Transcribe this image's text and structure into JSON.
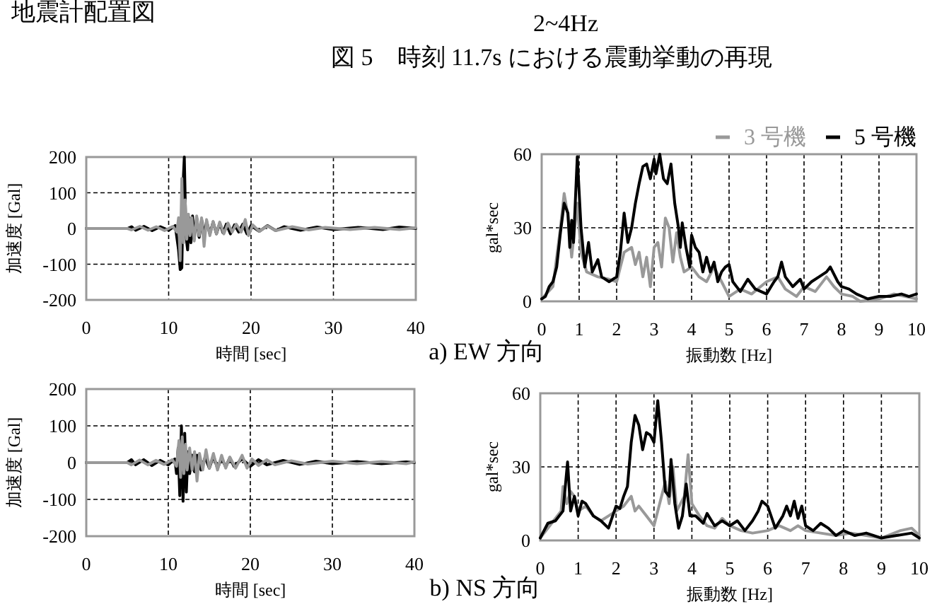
{
  "chart_data": [
    {
      "type": "line",
      "xlabel": "時間 [sec]",
      "ylabel": "加速度 [Gal]",
      "xlim": [
        0,
        40
      ],
      "ylim": [
        -200,
        200
      ],
      "xticks": [
        0,
        10,
        20,
        30,
        40
      ],
      "yticks": [
        -200,
        -100,
        0,
        100,
        200
      ],
      "grid": true,
      "annotations": [
        "地震計配置図",
        "2~4Hz",
        "図 5　時刻 11.7s における震動挙動の再現",
        "a) EW 方向"
      ],
      "series": [
        {
          "color": "#000000",
          "x": [
            0,
            5,
            5.5,
            6,
            7,
            8,
            9,
            10,
            10.8,
            11.2,
            11.4,
            11.6,
            11.8,
            11.9,
            12.1,
            12.3,
            12.5,
            12.7,
            12.9,
            13.1,
            13.4,
            13.7,
            14,
            14.3,
            14.6,
            15,
            15.4,
            15.8,
            16.2,
            16.6,
            17,
            17.5,
            18,
            18.5,
            19,
            19.5,
            20,
            21,
            22,
            23,
            24,
            26,
            28,
            30,
            33,
            36,
            38,
            40
          ],
          "values": [
            0,
            0,
            5,
            -5,
            6,
            -6,
            5,
            -5,
            8,
            -60,
            -115,
            -110,
            150,
            200,
            -20,
            -60,
            30,
            -40,
            35,
            -30,
            30,
            -25,
            25,
            -20,
            20,
            -15,
            18,
            -15,
            15,
            -12,
            12,
            -15,
            10,
            -10,
            12,
            -15,
            8,
            -8,
            8,
            -6,
            5,
            -5,
            4,
            -3,
            3,
            -3,
            4,
            0
          ]
        },
        {
          "color": "#999999",
          "x": [
            0,
            5,
            5.5,
            6.5,
            7.5,
            8.5,
            9.5,
            10.5,
            11,
            11.2,
            11.4,
            11.6,
            11.8,
            12,
            12.2,
            12.4,
            12.6,
            12.8,
            13.1,
            13.4,
            13.7,
            14,
            14.3,
            14.6,
            15,
            15.4,
            15.8,
            16.2,
            16.7,
            17.2,
            17.7,
            18.2,
            18.8,
            19.3,
            19.7,
            20.2,
            21,
            22,
            23,
            25,
            27,
            29,
            32,
            35,
            38,
            40
          ],
          "values": [
            0,
            0,
            -4,
            6,
            -5,
            5,
            -6,
            6,
            -10,
            30,
            -90,
            140,
            -40,
            80,
            -30,
            40,
            -20,
            30,
            -35,
            35,
            -20,
            30,
            -50,
            25,
            -20,
            20,
            -15,
            18,
            -15,
            15,
            -10,
            12,
            -10,
            25,
            -20,
            10,
            -8,
            7,
            -6,
            5,
            -4,
            3,
            -3,
            3,
            -3,
            2
          ]
        }
      ]
    },
    {
      "type": "line",
      "xlabel": "振動数 [Hz]",
      "ylabel": "gal*sec",
      "xlim": [
        0,
        10
      ],
      "ylim": [
        0,
        60
      ],
      "xticks": [
        0,
        1,
        2,
        3,
        4,
        5,
        6,
        7,
        8,
        9,
        10
      ],
      "yticks": [
        0,
        30,
        60
      ],
      "grid": true,
      "legend": "top right",
      "series": [
        {
          "name": "3 号機",
          "color": "#999999",
          "x": [
            0,
            0.3,
            0.5,
            0.6,
            0.7,
            0.8,
            0.95,
            1.05,
            1.2,
            1.5,
            1.8,
            2,
            2.1,
            2.2,
            2.4,
            2.5,
            2.6,
            2.7,
            2.8,
            2.9,
            3,
            3.1,
            3.2,
            3.3,
            3.4,
            3.5,
            3.6,
            3.7,
            3.8,
            4,
            4.2,
            4.4,
            4.6,
            4.8,
            5,
            5.3,
            5.6,
            6,
            6.3,
            6.5,
            6.8,
            7,
            7.3,
            7.6,
            7.8,
            8,
            8.3,
            8.5,
            9,
            9.4,
            9.7,
            10
          ],
          "values": [
            1,
            6,
            30,
            44,
            35,
            18,
            40,
            20,
            12,
            10,
            9,
            8,
            14,
            20,
            22,
            15,
            20,
            10,
            18,
            6,
            22,
            24,
            14,
            34,
            30,
            16,
            28,
            18,
            12,
            14,
            10,
            8,
            14,
            8,
            2,
            5,
            3,
            8,
            10,
            5,
            2,
            6,
            4,
            10,
            6,
            3,
            2,
            0,
            1,
            3,
            2,
            1
          ]
        },
        {
          "name": "5 号機",
          "color": "#000000",
          "x": [
            0,
            0.1,
            0.2,
            0.3,
            0.4,
            0.5,
            0.6,
            0.7,
            0.75,
            0.8,
            0.85,
            0.95,
            1.05,
            1.15,
            1.25,
            1.35,
            1.5,
            1.6,
            1.8,
            2,
            2.1,
            2.2,
            2.3,
            2.4,
            2.5,
            2.6,
            2.7,
            2.8,
            2.9,
            3,
            3.05,
            3.15,
            3.25,
            3.35,
            3.45,
            3.55,
            3.65,
            3.7,
            3.75,
            3.85,
            3.95,
            4,
            4.1,
            4.2,
            4.3,
            4.4,
            4.5,
            4.6,
            4.7,
            4.8,
            4.9,
            5,
            5.1,
            5.3,
            5.5,
            5.7,
            6,
            6.2,
            6.3,
            6.4,
            6.5,
            6.7,
            6.9,
            7,
            7.2,
            7.4,
            7.6,
            7.7,
            7.9,
            8,
            8.2,
            8.4,
            8.7,
            9,
            9.3,
            9.6,
            9.8,
            10
          ],
          "values": [
            1,
            2,
            6,
            8,
            14,
            28,
            40,
            36,
            22,
            33,
            24,
            59,
            30,
            14,
            24,
            12,
            17,
            10,
            8,
            10,
            20,
            36,
            24,
            30,
            40,
            48,
            55,
            56,
            50,
            58,
            52,
            60,
            50,
            48,
            56,
            40,
            30,
            22,
            32,
            22,
            14,
            27,
            22,
            20,
            12,
            18,
            12,
            16,
            8,
            12,
            14,
            15,
            8,
            4,
            9,
            5,
            3,
            8,
            10,
            16,
            10,
            6,
            9,
            5,
            8,
            10,
            12,
            14,
            8,
            6,
            5,
            3,
            1,
            2,
            2,
            3,
            2,
            3
          ]
        }
      ]
    },
    {
      "type": "line",
      "xlabel": "時間 [sec]",
      "ylabel": "加速度 [Gal]",
      "xlim": [
        0,
        40
      ],
      "ylim": [
        -200,
        200
      ],
      "xticks": [
        0,
        10,
        20,
        30,
        40
      ],
      "yticks": [
        -200,
        -100,
        0,
        100,
        200
      ],
      "grid": true,
      "annotations": [
        "b) NS 方向"
      ],
      "series": [
        {
          "color": "#000000",
          "x": [
            0,
            5,
            5.5,
            6,
            7,
            8,
            9,
            10,
            10.8,
            11,
            11.2,
            11.4,
            11.6,
            11.8,
            12,
            12.2,
            12.4,
            12.6,
            12.9,
            13.2,
            13.5,
            14,
            14.5,
            15,
            15.5,
            16,
            16.5,
            17,
            17.5,
            18,
            19,
            20,
            21,
            22,
            24,
            26,
            28,
            30,
            33,
            36,
            39,
            40
          ],
          "values": [
            0,
            0,
            8,
            -6,
            8,
            -8,
            6,
            -6,
            10,
            -30,
            40,
            -90,
            100,
            -105,
            80,
            -80,
            30,
            -30,
            20,
            -25,
            20,
            -20,
            15,
            -15,
            18,
            -15,
            12,
            -12,
            14,
            -10,
            10,
            -10,
            8,
            -6,
            6,
            -5,
            4,
            -3,
            3,
            -3,
            2,
            0
          ]
        },
        {
          "color": "#999999",
          "x": [
            0,
            5,
            5.5,
            6.5,
            7.5,
            8.5,
            9.5,
            10.5,
            11,
            11.3,
            11.5,
            11.7,
            11.9,
            12.1,
            12.3,
            12.6,
            12.9,
            13.2,
            13.5,
            13.8,
            14.2,
            14.6,
            15,
            15.5,
            16,
            16.5,
            17,
            17.5,
            18.2,
            19,
            19.6,
            20.2,
            21,
            22,
            23,
            25,
            27,
            30,
            33,
            36,
            39,
            40
          ],
          "values": [
            0,
            0,
            -6,
            7,
            -6,
            6,
            -5,
            8,
            -10,
            60,
            -40,
            70,
            -30,
            50,
            -20,
            40,
            -20,
            30,
            -50,
            25,
            -20,
            35,
            -15,
            25,
            -20,
            20,
            -15,
            15,
            -15,
            20,
            -15,
            10,
            -8,
            8,
            -6,
            5,
            -4,
            4,
            -3,
            3,
            -3,
            2
          ]
        }
      ]
    },
    {
      "type": "line",
      "xlabel": "振動数 [Hz]",
      "ylabel": "gal*sec",
      "xlim": [
        0,
        10
      ],
      "ylim": [
        0,
        60
      ],
      "xticks": [
        0,
        1,
        2,
        3,
        4,
        5,
        6,
        7,
        8,
        9,
        10
      ],
      "yticks": [
        0,
        30,
        60
      ],
      "grid": true,
      "series": [
        {
          "color": "#999999",
          "x": [
            0,
            0.3,
            0.55,
            0.6,
            0.7,
            0.8,
            0.9,
            1,
            1.2,
            1.4,
            1.6,
            1.8,
            2,
            2.2,
            2.4,
            2.5,
            2.6,
            2.8,
            3,
            3.1,
            3.3,
            3.4,
            3.5,
            3.6,
            3.8,
            3.9,
            4,
            4.2,
            4.4,
            4.6,
            4.8,
            5,
            5.3,
            5.6,
            6,
            6.3,
            6.6,
            6.8,
            7,
            7.4,
            7.8,
            8.2,
            8.6,
            9,
            9.5,
            9.8,
            10
          ],
          "values": [
            1,
            7,
            12,
            22,
            15,
            20,
            18,
            12,
            14,
            10,
            8,
            10,
            12,
            14,
            18,
            12,
            14,
            10,
            6,
            12,
            24,
            15,
            30,
            12,
            18,
            35,
            15,
            10,
            6,
            5,
            9,
            6,
            4,
            3,
            4,
            6,
            4,
            6,
            4,
            3,
            2,
            3,
            2,
            1,
            4,
            5,
            2
          ]
        },
        {
          "color": "#000000",
          "x": [
            0,
            0.2,
            0.4,
            0.6,
            0.72,
            0.8,
            0.9,
            1,
            1.1,
            1.2,
            1.4,
            1.6,
            1.8,
            2,
            2.1,
            2.2,
            2.3,
            2.4,
            2.5,
            2.6,
            2.7,
            2.8,
            2.9,
            3,
            3.1,
            3.2,
            3.3,
            3.4,
            3.45,
            3.55,
            3.65,
            3.75,
            3.85,
            3.95,
            4.1,
            4.3,
            4.4,
            4.6,
            4.8,
            5,
            5.2,
            5.4,
            5.6,
            5.75,
            5.85,
            6,
            6.2,
            6.4,
            6.5,
            6.6,
            6.7,
            6.8,
            6.9,
            7,
            7.2,
            7.4,
            7.6,
            7.8,
            8,
            8.3,
            8.6,
            9,
            9.4,
            9.8,
            10
          ],
          "values": [
            1,
            7,
            8,
            12,
            32,
            12,
            18,
            10,
            16,
            15,
            10,
            8,
            5,
            14,
            13,
            18,
            22,
            40,
            51,
            47,
            37,
            44,
            43,
            40,
            57,
            40,
            20,
            18,
            33,
            15,
            5,
            10,
            23,
            10,
            10,
            7,
            11,
            6,
            8,
            6,
            8,
            4,
            8,
            12,
            16,
            14,
            5,
            10,
            14,
            10,
            16,
            9,
            14,
            6,
            4,
            7,
            5,
            2,
            4,
            2,
            3,
            1,
            2,
            3,
            1
          ]
        }
      ]
    }
  ]
}
